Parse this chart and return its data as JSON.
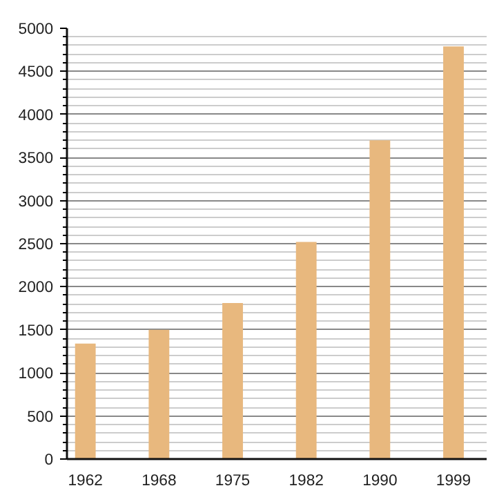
{
  "chart_data": {
    "type": "bar",
    "categories": [
      "1962",
      "1968",
      "1975",
      "1982",
      "1990",
      "1999"
    ],
    "values": [
      1340,
      1500,
      1810,
      2520,
      3700,
      4790
    ],
    "color": "#e8b87e",
    "ylim": [
      0,
      5000
    ],
    "yticks": [
      0,
      {
        "value": 100,
        "label": null
      },
      {
        "value": 200,
        "label": null
      },
      {
        "value": 300,
        "label": null
      },
      {
        "value": 400,
        "label": null
      },
      500,
      {
        "value": 600,
        "label": null
      },
      {
        "value": 700,
        "label": null
      },
      {
        "value": 800,
        "label": null
      },
      {
        "value": 900,
        "label": null
      },
      1000,
      {
        "value": 1100,
        "label": null
      },
      {
        "value": 1200,
        "label": null
      },
      {
        "value": 1300,
        "label": null
      },
      {
        "value": 1400,
        "label": null
      },
      1500,
      {
        "value": 1600,
        "label": null
      },
      {
        "value": 1700,
        "label": null
      },
      {
        "value": 1800,
        "label": null
      },
      {
        "value": 1900,
        "label": null
      },
      2000,
      {
        "value": 2100,
        "label": null
      },
      {
        "value": 2200,
        "label": null
      },
      {
        "value": 2300,
        "label": null
      },
      {
        "value": 2400,
        "label": null
      },
      2500,
      {
        "value": 2600,
        "label": null
      },
      {
        "value": 2700,
        "label": null
      },
      {
        "value": 2800,
        "label": null
      },
      {
        "value": 2900,
        "label": null
      },
      3000,
      {
        "value": 3100,
        "label": null
      },
      {
        "value": 3200,
        "label": null
      },
      {
        "value": 3300,
        "label": null
      },
      {
        "value": 3400,
        "label": null
      },
      3500,
      {
        "value": 3600,
        "label": null
      },
      {
        "value": 3700,
        "label": null
      },
      {
        "value": 3800,
        "label": null
      },
      {
        "value": 3900,
        "label": null
      },
      4000,
      {
        "value": 4100,
        "label": null
      },
      {
        "value": 4200,
        "label": null
      },
      {
        "value": 4300,
        "label": null
      },
      {
        "value": 4400,
        "label": null
      },
      4500,
      {
        "value": 4600,
        "label": null
      },
      {
        "value": 4700,
        "label": null
      },
      {
        "value": 4800,
        "label": null
      },
      {
        "value": 4900,
        "label": null
      },
      5000
    ],
    "grid": "y"
  }
}
